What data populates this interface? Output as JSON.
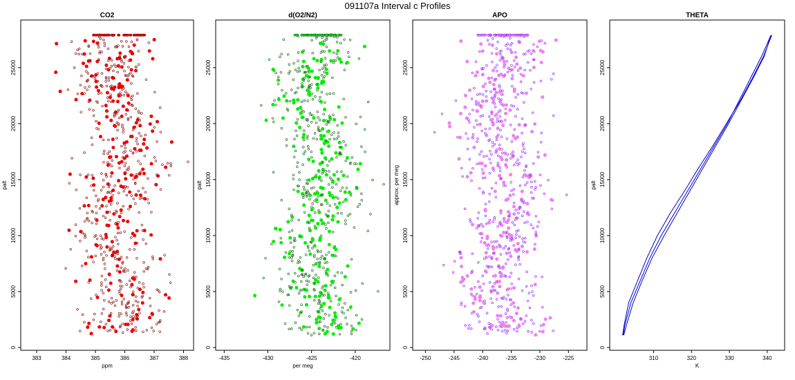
{
  "figure": {
    "title": "091107a   Interval c Profiles"
  },
  "chart_data": [
    {
      "type": "scatter",
      "title": "CO2",
      "xlabel": "ppm",
      "ylabel": "palt",
      "xlim": [
        382.6,
        388.2
      ],
      "ylim": [
        0,
        29000
      ],
      "xticks": [
        383,
        384,
        385,
        386,
        387,
        388
      ],
      "yticks": [
        0,
        5000,
        10000,
        15000,
        20000,
        25000
      ],
      "point_color": "#ee0000",
      "point_edge": "#8b1a1a",
      "x_center": 385.8,
      "x_spread": 0.7,
      "y_range": [
        1100,
        27900
      ]
    },
    {
      "type": "scatter",
      "title": "d(O2/N2)",
      "xlabel": "per meg",
      "ylabel": "palt",
      "xlim": [
        -435.5,
        -416.5
      ],
      "ylim": [
        0,
        29000
      ],
      "xticks": [
        -435,
        -430,
        -425,
        -420
      ],
      "yticks": [
        0,
        5000,
        10000,
        15000,
        20000,
        25000
      ],
      "point_color": "#00ee00",
      "point_edge": "#1f6b1f",
      "x_center": -424.3,
      "x_spread": 2.2,
      "y_range": [
        1100,
        27900
      ]
    },
    {
      "type": "scatter",
      "title": "APO",
      "xlabel": "",
      "ylabel": "approx. per meg",
      "xlim": [
        -251.5,
        -222.5
      ],
      "ylim": [
        0,
        29000
      ],
      "xticks": [
        -250,
        -245,
        -240,
        -235,
        -230,
        -225
      ],
      "yticks": [
        0,
        5000,
        10000,
        15000,
        20000,
        25000
      ],
      "point_color": "#ee82ee",
      "point_edge": "#9b30ff",
      "x_center": -236.5,
      "x_spread": 3.5,
      "y_range": [
        1100,
        27900
      ]
    },
    {
      "type": "line",
      "title": "THETA",
      "xlabel": "K",
      "ylabel": "palt",
      "xlim": [
        299.5,
        343.5
      ],
      "ylim": [
        0,
        29000
      ],
      "xticks": [
        310,
        320,
        330,
        340
      ],
      "yticks": [
        0,
        5000,
        10000,
        15000,
        20000,
        25000
      ],
      "line_color": "#0000cc",
      "series": [
        {
          "name": "",
          "x": [
            302.0,
            302.4,
            304.0,
            306.5,
            309.0,
            312.0,
            315.5,
            319.0,
            322.5,
            326.0,
            329.5,
            332.5,
            335.5,
            338.5,
            341.0
          ],
          "y": [
            1100,
            2000,
            4000,
            6000,
            8000,
            10000,
            12000,
            14000,
            16000,
            18000,
            20000,
            22000,
            24000,
            26000,
            27900
          ]
        },
        {
          "name": "",
          "x": [
            301.8,
            302.2,
            303.4,
            305.8,
            308.2,
            311.0,
            314.4,
            318.2,
            321.8,
            325.6,
            329.2,
            332.8,
            336.0,
            339.0,
            341.2
          ],
          "y": [
            1100,
            2000,
            4000,
            6000,
            8000,
            10000,
            12000,
            14000,
            16000,
            18000,
            20000,
            22000,
            24000,
            26000,
            27900
          ]
        },
        {
          "name": "",
          "x": [
            302.1,
            302.8,
            304.6,
            307.0,
            309.6,
            312.8,
            316.2,
            319.6,
            323.0,
            326.4,
            329.8,
            333.0,
            336.2,
            339.2,
            341.0
          ],
          "y": [
            1100,
            2000,
            4000,
            6000,
            8000,
            10000,
            12000,
            14000,
            16000,
            18000,
            20000,
            22000,
            24000,
            26000,
            27900
          ]
        }
      ]
    }
  ]
}
